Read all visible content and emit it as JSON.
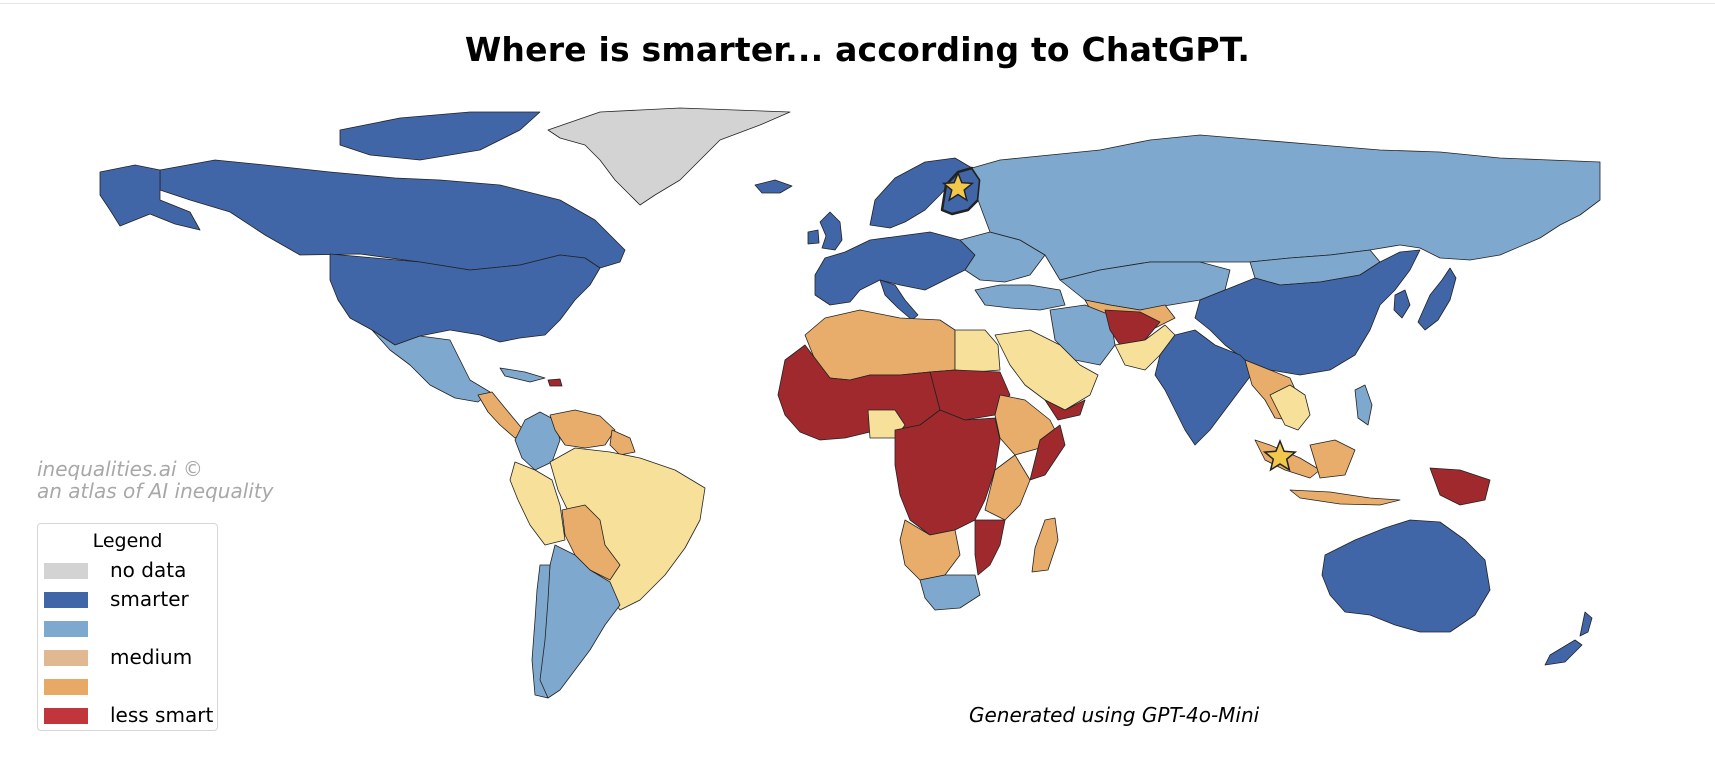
{
  "title": "Where is smarter... according to ChatGPT.",
  "watermark": {
    "line1": "inequalities.ai ©",
    "line2": "an atlas of AI inequality"
  },
  "credit": "Generated using GPT-4o-Mini",
  "legend": {
    "title": "Legend",
    "items": [
      {
        "label": "no data",
        "color": "#d3d3d3"
      },
      {
        "label": "smarter",
        "color": "#4166a8"
      },
      {
        "label": "",
        "color": "#7ea8cd"
      },
      {
        "label": "medium",
        "color": "#e0b993"
      },
      {
        "label": "",
        "color": "#e8a966"
      },
      {
        "label": "less smart",
        "color": "#c1363d"
      }
    ]
  },
  "colors": {
    "smarter": "#4166a8",
    "above_medium": "#7ea8cd",
    "medium": "#f6e09a",
    "below_medium": "#e8ad6a",
    "less_smart": "#a0292e",
    "no_data": "#d3d3d3",
    "star": "#f2c84b"
  },
  "markers": [
    {
      "name": "finland-star-icon"
    },
    {
      "name": "indonesia-star-icon"
    }
  ]
}
